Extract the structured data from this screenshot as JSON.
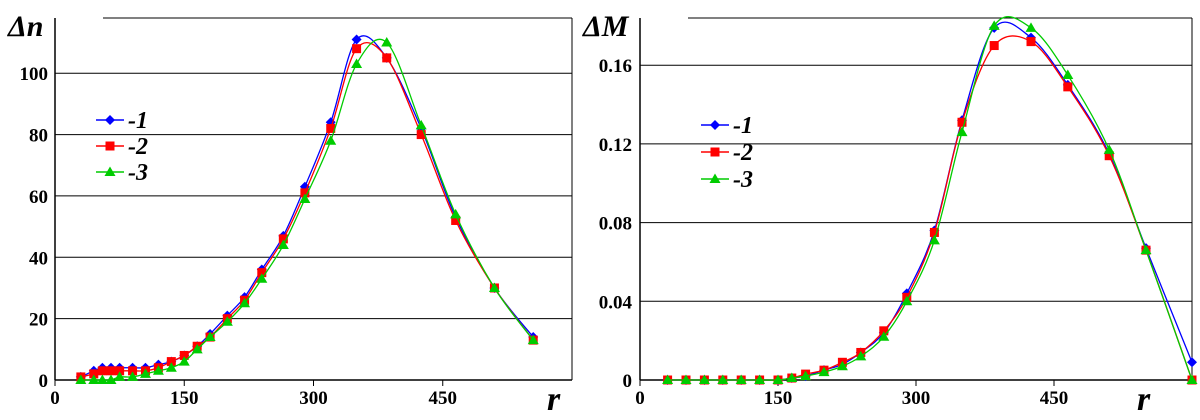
{
  "chart_data": [
    {
      "type": "line",
      "ylabel": "Δn",
      "xlabel": "r",
      "xlim": [
        0,
        600
      ],
      "ylim": [
        0,
        118
      ],
      "xticks": [
        0,
        150,
        300,
        450
      ],
      "yticks": [
        0,
        20,
        40,
        60,
        80,
        100
      ],
      "grid": "horizontal",
      "legend_placement": "left",
      "series": [
        {
          "name": "-1",
          "color": "#0000ff",
          "marker": "diamond",
          "x": [
            30,
            45,
            55,
            65,
            75,
            90,
            105,
            120,
            135,
            150,
            165,
            180,
            200,
            220,
            240,
            265,
            290,
            320,
            350,
            385,
            425,
            465,
            510,
            555
          ],
          "y": [
            1,
            3,
            4,
            4,
            4,
            4,
            4,
            5,
            6,
            8,
            11,
            15,
            21,
            27,
            36,
            47,
            63,
            84,
            111,
            105,
            82,
            53,
            30,
            14
          ]
        },
        {
          "name": "-2",
          "color": "#ff0000",
          "marker": "square",
          "x": [
            30,
            45,
            55,
            65,
            75,
            90,
            105,
            120,
            135,
            150,
            165,
            180,
            200,
            220,
            240,
            265,
            290,
            320,
            350,
            385,
            425,
            465,
            510,
            555
          ],
          "y": [
            1,
            2,
            3,
            3,
            3,
            3,
            3,
            4,
            6,
            8,
            11,
            14,
            20,
            26,
            35,
            46,
            61,
            82,
            108,
            105,
            80,
            52,
            30,
            13
          ]
        },
        {
          "name": "-3",
          "color": "#00cc00",
          "marker": "triangle",
          "x": [
            30,
            45,
            55,
            65,
            75,
            90,
            105,
            120,
            135,
            150,
            165,
            180,
            200,
            220,
            240,
            265,
            290,
            320,
            350,
            385,
            425,
            465,
            510,
            555
          ],
          "y": [
            0,
            0,
            0,
            0,
            1,
            1,
            2,
            3,
            4,
            6,
            10,
            14,
            19,
            25,
            33,
            44,
            59,
            78,
            103,
            110,
            83,
            54,
            30,
            13
          ]
        }
      ]
    },
    {
      "type": "line",
      "ylabel": "ΔM",
      "xlabel": "r",
      "xlim": [
        0,
        600
      ],
      "ylim": [
        0,
        0.184
      ],
      "xticks": [
        0,
        150,
        300,
        450
      ],
      "yticks": [
        0,
        0.04,
        0.08,
        0.12,
        0.16
      ],
      "ytick_labels": [
        "0",
        "0.04",
        "0.08",
        "0.12",
        "0.16"
      ],
      "grid": "horizontal",
      "legend_placement": "left",
      "series": [
        {
          "name": "-1",
          "color": "#0000ff",
          "marker": "diamond",
          "x": [
            30,
            50,
            70,
            90,
            110,
            130,
            150,
            165,
            180,
            200,
            220,
            240,
            265,
            290,
            320,
            350,
            385,
            425,
            465,
            510,
            550,
            600
          ],
          "y": [
            0,
            0,
            0,
            0,
            0,
            0,
            0,
            0.001,
            0.002,
            0.005,
            0.008,
            0.014,
            0.024,
            0.044,
            0.076,
            0.132,
            0.179,
            0.174,
            0.15,
            0.115,
            0.067,
            0.009
          ]
        },
        {
          "name": "-2",
          "color": "#ff0000",
          "marker": "square",
          "x": [
            30,
            50,
            70,
            90,
            110,
            130,
            150,
            165,
            180,
            200,
            220,
            240,
            265,
            290,
            320,
            350,
            385,
            425,
            465,
            510,
            550,
            600
          ],
          "y": [
            0,
            0,
            0,
            0,
            0,
            0,
            0,
            0.001,
            0.003,
            0.005,
            0.009,
            0.014,
            0.025,
            0.042,
            0.075,
            0.131,
            0.17,
            0.172,
            0.149,
            0.114,
            0.066,
            0.0
          ]
        },
        {
          "name": "-3",
          "color": "#00cc00",
          "marker": "triangle",
          "x": [
            30,
            50,
            70,
            90,
            110,
            130,
            150,
            165,
            180,
            200,
            220,
            240,
            265,
            290,
            320,
            350,
            385,
            425,
            465,
            510,
            550,
            600
          ],
          "y": [
            0,
            0,
            0,
            0,
            0,
            0,
            0,
            0.001,
            0.002,
            0.004,
            0.007,
            0.012,
            0.022,
            0.04,
            0.071,
            0.126,
            0.18,
            0.179,
            0.155,
            0.117,
            0.066,
            0.0
          ]
        }
      ]
    }
  ]
}
